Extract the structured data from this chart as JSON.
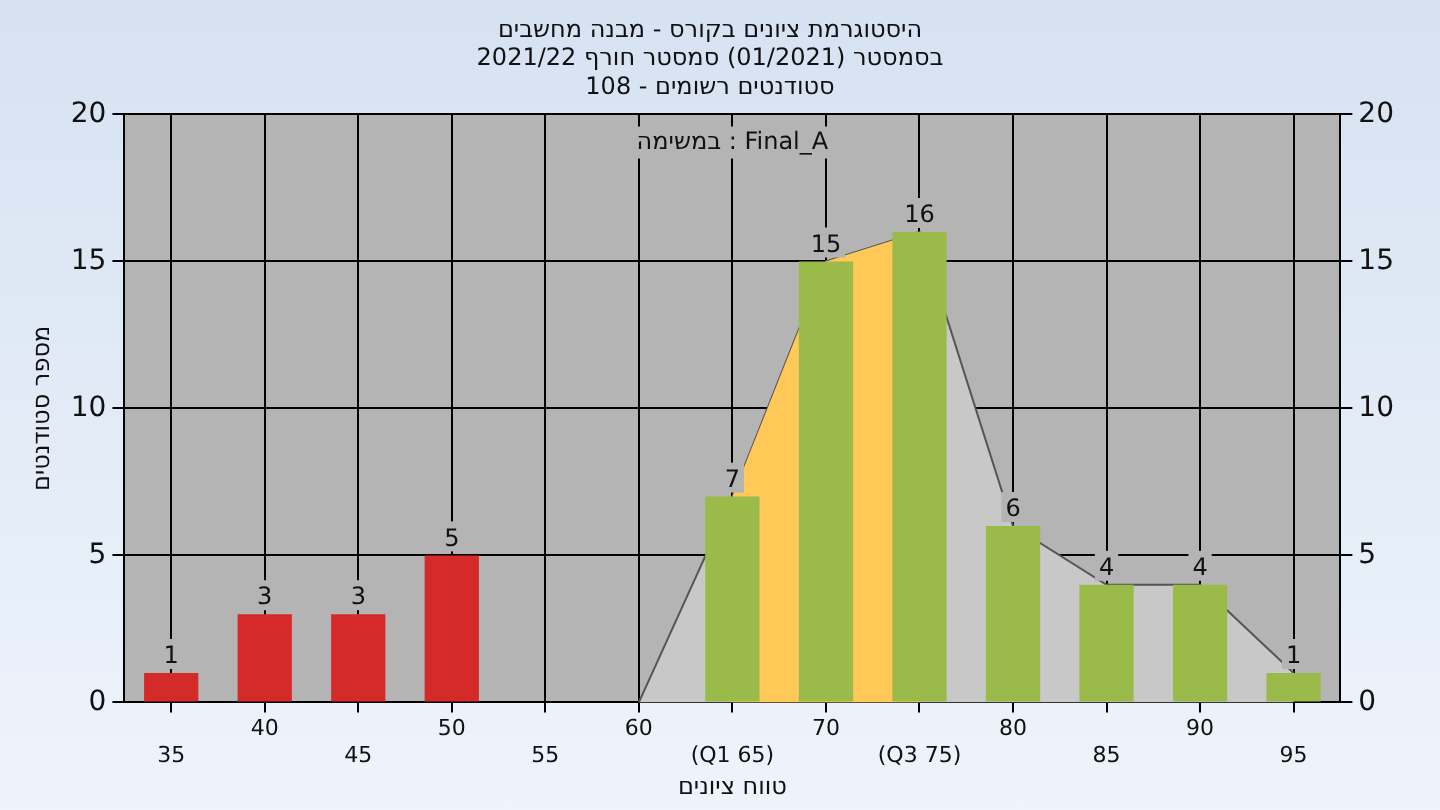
{
  "chart_data": {
    "type": "bar",
    "title": "היסטוגרמת ציונים בקורס - מבנה מחשבים",
    "subtitle": "בסמסטר (01/2021) סמסטר חורף 2021/22\nסטודנטים רשומים - 108",
    "xlabel": "טווח ציונים",
    "ylabel": "מספר סטודנטים",
    "annotations": [
      "במשימה : Final_A"
    ],
    "categories": [
      "35",
      "40",
      "45",
      "50",
      "55",
      "60",
      "(Q1 65)",
      "70",
      "(Q3 75)",
      "80",
      "85",
      "90",
      "95"
    ],
    "series": [
      {
        "colors": [
          "#d42a2a",
          "#d42a2a",
          "#d42a2a",
          "#d42a2a",
          "#9aba4a",
          "#9aba4a",
          "#9aba4a",
          "#9aba4a",
          "#9aba4a",
          "#9aba4a",
          "#9aba4a",
          "#9aba4a",
          "#9aba4a"
        ],
        "values": [
          1,
          3,
          3,
          5,
          0,
          0,
          7,
          15,
          16,
          6,
          4,
          4,
          1
        ],
        "value_labels": [
          "1",
          "3",
          "3",
          "5",
          null,
          null,
          "7",
          "15",
          "16",
          "6",
          "4",
          "4",
          "1"
        ]
      },
      {
        "type": "area",
        "color": "#c8c8c8",
        "values": [
          null,
          null,
          null,
          null,
          null,
          0,
          7,
          15,
          16,
          6,
          4,
          4,
          1
        ]
      },
      {
        "type": "area",
        "color": "#ffc857",
        "values": [
          null,
          null,
          null,
          null,
          null,
          null,
          7,
          15,
          16,
          null,
          null,
          null,
          null
        ]
      }
    ],
    "ylim": [
      0,
      20
    ],
    "yticks": [
      0,
      5,
      10,
      15,
      20
    ],
    "y2lim": [
      0,
      20
    ],
    "y2ticks": [
      0,
      5,
      10,
      15,
      20
    ],
    "grid": true,
    "legend": false
  }
}
